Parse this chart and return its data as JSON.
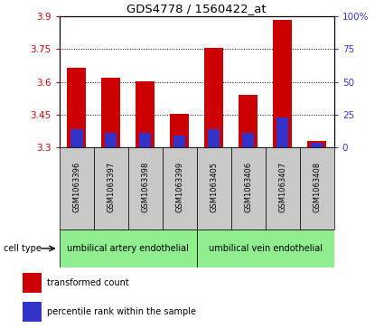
{
  "title": "GDS4778 / 1560422_at",
  "samples": [
    "GSM1063396",
    "GSM1063397",
    "GSM1063398",
    "GSM1063399",
    "GSM1063405",
    "GSM1063406",
    "GSM1063407",
    "GSM1063408"
  ],
  "transformed_count": [
    3.665,
    3.62,
    3.605,
    3.455,
    3.755,
    3.54,
    3.885,
    3.33
  ],
  "percentile_rank": [
    14,
    11,
    11,
    9,
    14,
    11,
    23,
    4
  ],
  "ylim_left": [
    3.3,
    3.9
  ],
  "ylim_right": [
    0,
    100
  ],
  "yticks_left": [
    3.3,
    3.45,
    3.6,
    3.75,
    3.9
  ],
  "yticks_right": [
    0,
    25,
    50,
    75,
    100
  ],
  "ytick_labels_left": [
    "3.3",
    "3.45",
    "3.6",
    "3.75",
    "3.9"
  ],
  "ytick_labels_right": [
    "0",
    "25",
    "50",
    "75",
    "100%"
  ],
  "cell_type_groups": [
    {
      "label": "umbilical artery endothelial",
      "start": 0,
      "end": 4,
      "color": "#90EE90"
    },
    {
      "label": "umbilical vein endothelial",
      "start": 4,
      "end": 8,
      "color": "#90EE90"
    }
  ],
  "bar_color_red": "#CC0000",
  "bar_color_blue": "#3333CC",
  "bar_width": 0.55,
  "blue_bar_width": 0.35,
  "bar_bottom": 3.3,
  "grid_color": "#000000",
  "background_color": "#FFFFFF",
  "cell_type_label": "cell type",
  "legend_red": "transformed count",
  "legend_blue": "percentile rank within the sample",
  "gray_color": "#C8C8C8",
  "green_color": "#90EE90"
}
